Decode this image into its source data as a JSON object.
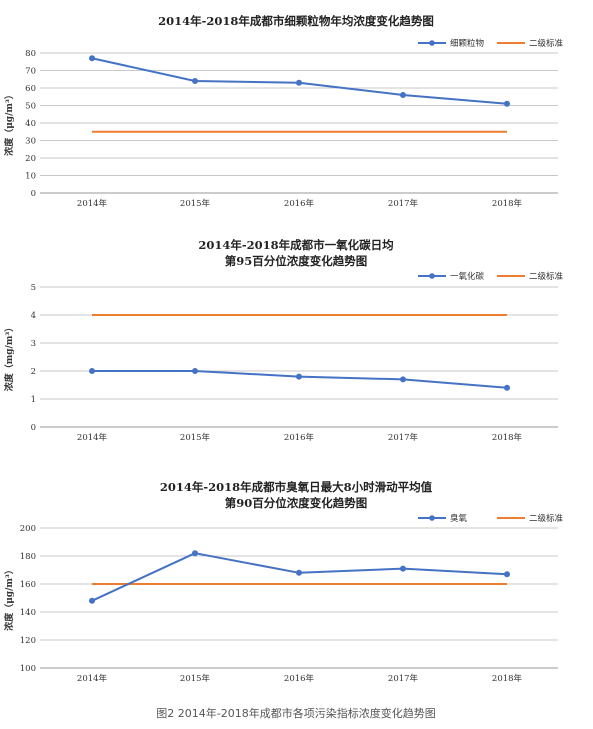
{
  "chart_data": [
    {
      "type": "line",
      "title": [
        "2014年-2018年成都市细颗粒物年均浓度变化趋势图"
      ],
      "ylabel": "浓度（μg/m³）",
      "categories": [
        "2014年",
        "2015年",
        "2016年",
        "2017年",
        "2018年"
      ],
      "ylim": [
        0,
        80
      ],
      "yticks": [
        0,
        10,
        20,
        30,
        40,
        50,
        60,
        70,
        80
      ],
      "grid": true,
      "legend_position": "top-right",
      "series": [
        {
          "name": "细颗粒物",
          "values": [
            77,
            64,
            63,
            56,
            51
          ],
          "color": "#4472c4",
          "markers": true
        },
        {
          "name": "二级标准",
          "values": [
            35,
            35,
            35,
            35,
            35
          ],
          "color": "#ed7d31",
          "markers": false
        }
      ]
    },
    {
      "type": "line",
      "title": [
        "2014年-2018年成都市一氧化碳日均",
        "第95百分位浓度变化趋势图"
      ],
      "ylabel": "浓度（mg/m³）",
      "categories": [
        "2014年",
        "2015年",
        "2016年",
        "2017年",
        "2018年"
      ],
      "ylim": [
        0,
        5
      ],
      "yticks": [
        0,
        1,
        2,
        3,
        4,
        5
      ],
      "grid": true,
      "legend_position": "top-right",
      "series": [
        {
          "name": "一氧化碳",
          "values": [
            2.0,
            2.0,
            1.8,
            1.7,
            1.4
          ],
          "color": "#4472c4",
          "markers": true
        },
        {
          "name": "二级标准",
          "values": [
            4,
            4,
            4,
            4,
            4
          ],
          "color": "#ed7d31",
          "markers": false
        }
      ]
    },
    {
      "type": "line",
      "title": [
        "2014年-2018年成都市臭氧日最大8小时滑动平均值",
        "第90百分位浓度变化趋势图"
      ],
      "ylabel": "浓度（μg/m³）",
      "categories": [
        "2014年",
        "2015年",
        "2016年",
        "2017年",
        "2018年"
      ],
      "ylim": [
        100,
        200
      ],
      "yticks": [
        100,
        120,
        140,
        160,
        180,
        200
      ],
      "grid": true,
      "legend_position": "top-right",
      "series": [
        {
          "name": "臭氧",
          "values": [
            148,
            182,
            168,
            171,
            167
          ],
          "color": "#4472c4",
          "markers": true
        },
        {
          "name": "二级标准",
          "values": [
            160,
            160,
            160,
            160,
            160
          ],
          "color": "#ed7d31",
          "markers": false
        }
      ]
    }
  ],
  "caption": "图2  2014年-2018年成都市各项污染指标浓度变化趋势图"
}
